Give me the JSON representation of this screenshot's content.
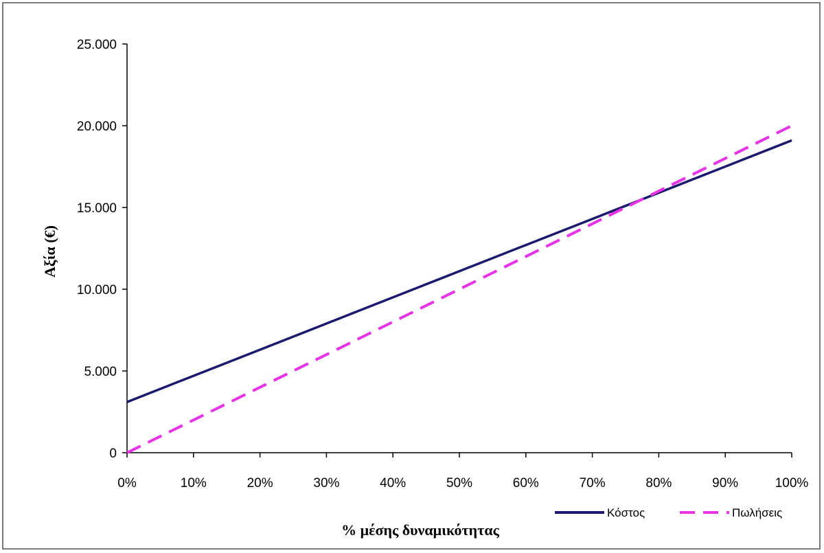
{
  "chart_data": {
    "type": "line",
    "title": "",
    "xlabel": "% μέσης δυναμικότητας",
    "ylabel": "Αξία (€)",
    "x": [
      0,
      10,
      20,
      30,
      40,
      50,
      60,
      70,
      80,
      90,
      100
    ],
    "x_tick_labels": [
      "0%",
      "10%",
      "20%",
      "30%",
      "40%",
      "50%",
      "60%",
      "70%",
      "80%",
      "90%",
      "100%"
    ],
    "y_ticks": [
      0,
      5000,
      10000,
      15000,
      20000,
      25000
    ],
    "y_tick_labels": [
      "0",
      "5.000",
      "10.000",
      "15.000",
      "20.000",
      "25.000"
    ],
    "xlim": [
      0,
      100
    ],
    "ylim": [
      0,
      25000
    ],
    "grid": false,
    "legend_position": "bottom-right",
    "series": [
      {
        "name": "Κόστος",
        "values": [
          3100,
          4700,
          6300,
          7900,
          9500,
          11100,
          12700,
          14300,
          15900,
          17500,
          19100
        ],
        "color": "#1a1a6e",
        "style": "solid"
      },
      {
        "name": "Πωλήσεις",
        "values": [
          0,
          2000,
          4000,
          6000,
          8000,
          10000,
          12000,
          14000,
          16000,
          18000,
          20000
        ],
        "color": "#e633e6",
        "style": "dashed"
      }
    ]
  }
}
